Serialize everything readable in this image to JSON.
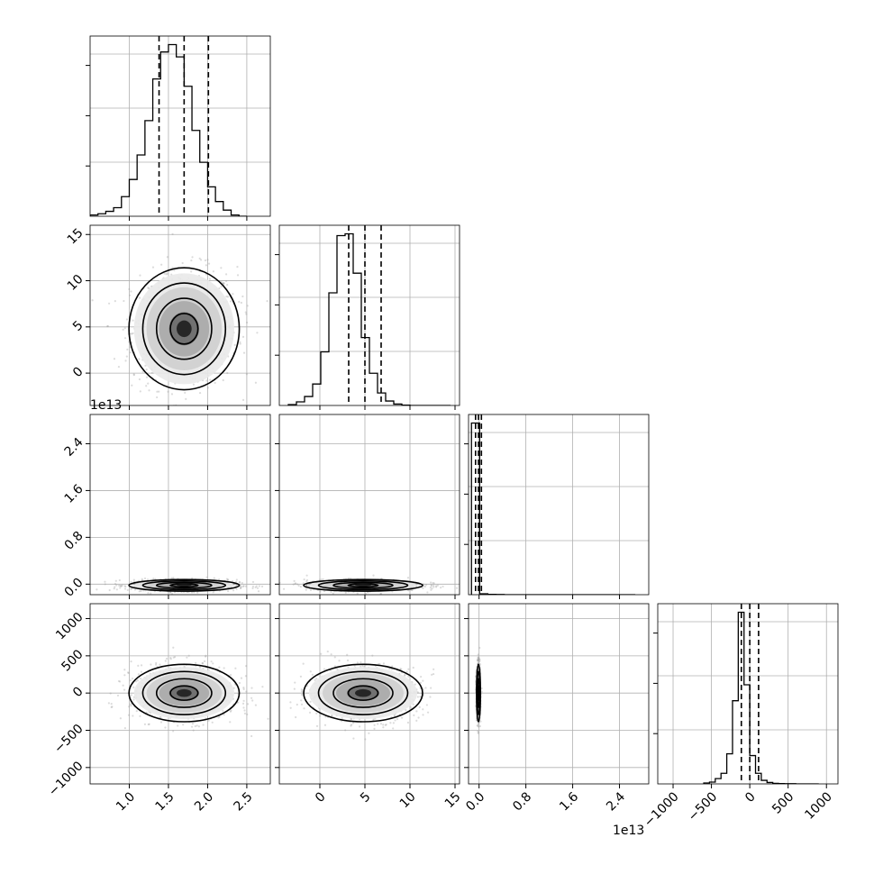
{
  "chart_data": {
    "type": "corner",
    "n_params": 4,
    "params": [
      {
        "index": 0,
        "xlim": [
          0.5,
          2.8
        ],
        "ticks": [
          1.0,
          1.5,
          2.0,
          2.5
        ],
        "tick_labels": [
          "1.0",
          "1.5",
          "2.0",
          "2.5"
        ],
        "quantiles": [
          1.38,
          1.7,
          2.01
        ],
        "hist_max": 7.0,
        "hist_edges_start": 0.5,
        "hist_bin_width": 0.1,
        "hist_counts": [
          0.05,
          0.1,
          0.2,
          0.35,
          0.8,
          1.5,
          2.5,
          3.9,
          5.6,
          6.7,
          7.0,
          6.5,
          5.3,
          3.5,
          2.2,
          1.2,
          0.6,
          0.25,
          0.05,
          0.0
        ]
      },
      {
        "index": 1,
        "xlim": [
          -4.5,
          15.5
        ],
        "ylim": [
          -3.5,
          16
        ],
        "ticks": [
          0,
          5,
          10,
          15
        ],
        "tick_labels": [
          "0",
          "5",
          "10",
          "15"
        ],
        "quantiles": [
          3.2,
          5.0,
          6.8
        ],
        "hist_max": 9.6,
        "hist_edges_start": -3.5,
        "hist_bin_width": 0.9,
        "hist_counts": [
          0.05,
          0.2,
          0.5,
          1.2,
          3.0,
          6.3,
          9.5,
          9.6,
          7.4,
          3.8,
          1.8,
          0.7,
          0.25,
          0.08,
          0.02,
          0.0,
          0.0,
          0.0,
          0.0,
          0.0
        ]
      },
      {
        "index": 2,
        "xlim": [
          -0.18,
          2.9
        ],
        "ylim": [
          -0.18,
          2.9
        ],
        "ticks": [
          0.0,
          0.8,
          1.6,
          2.4
        ],
        "tick_labels": [
          "0.0",
          "0.8",
          "1.6",
          "2.4"
        ],
        "offset_label": "1e13",
        "quantiles": [
          -0.06,
          -0.01,
          0.04
        ],
        "hist_max": 1.0,
        "hist_edges_start": -0.13,
        "hist_bin_width": 0.14,
        "hist_counts": [
          1.0,
          0.005,
          0.002,
          0.001,
          0.0,
          0.0,
          0.0,
          0.0,
          0.0,
          0.0,
          0.0,
          0.0,
          0.0,
          0.0,
          0.0,
          0.0,
          0.0,
          0.0,
          0.0,
          0.0
        ]
      },
      {
        "index": 3,
        "xlim": [
          -1200,
          1150
        ],
        "ylim": [
          -1220,
          1200
        ],
        "ticks": [
          -1000,
          -500,
          0,
          500,
          1000
        ],
        "tick_labels": [
          "−1000",
          "−500",
          "0",
          "500",
          "1000"
        ],
        "quantiles": [
          -110,
          0,
          115
        ],
        "hist_max": 9.7,
        "hist_edges_start": -600,
        "hist_bin_width": 75,
        "hist_counts": [
          0.05,
          0.1,
          0.3,
          0.6,
          1.7,
          4.7,
          9.7,
          5.6,
          1.6,
          0.6,
          0.2,
          0.08,
          0.03,
          0.02,
          0.01,
          0.01,
          0.0,
          0.0,
          0.0,
          0.0
        ]
      }
    ],
    "pairs": [
      {
        "row": 1,
        "col": 0,
        "center": [
          1.7,
          4.8
        ],
        "sigma": [
          0.32,
          3.0
        ],
        "corr": 0.05
      },
      {
        "row": 2,
        "col": 0,
        "center": [
          1.7,
          -0.02
        ],
        "sigma": [
          0.32,
          0.045
        ],
        "corr": 0.0
      },
      {
        "row": 2,
        "col": 1,
        "center": [
          4.8,
          -0.02
        ],
        "sigma": [
          3.0,
          0.045
        ],
        "corr": 0.0
      },
      {
        "row": 3,
        "col": 0,
        "center": [
          1.7,
          0
        ],
        "sigma": [
          0.32,
          175
        ],
        "corr": -0.05
      },
      {
        "row": 3,
        "col": 1,
        "center": [
          4.8,
          0
        ],
        "sigma": [
          3.0,
          175
        ],
        "corr": 0.0
      },
      {
        "row": 3,
        "col": 2,
        "center": [
          -0.01,
          0
        ],
        "sigma": [
          0.015,
          175
        ],
        "corr": 0.0
      }
    ],
    "contour_levels_sigma": [
      0.5,
      1.0,
      1.5,
      2.0
    ],
    "grid": true,
    "title": "",
    "xlabel": "",
    "ylabel": ""
  }
}
